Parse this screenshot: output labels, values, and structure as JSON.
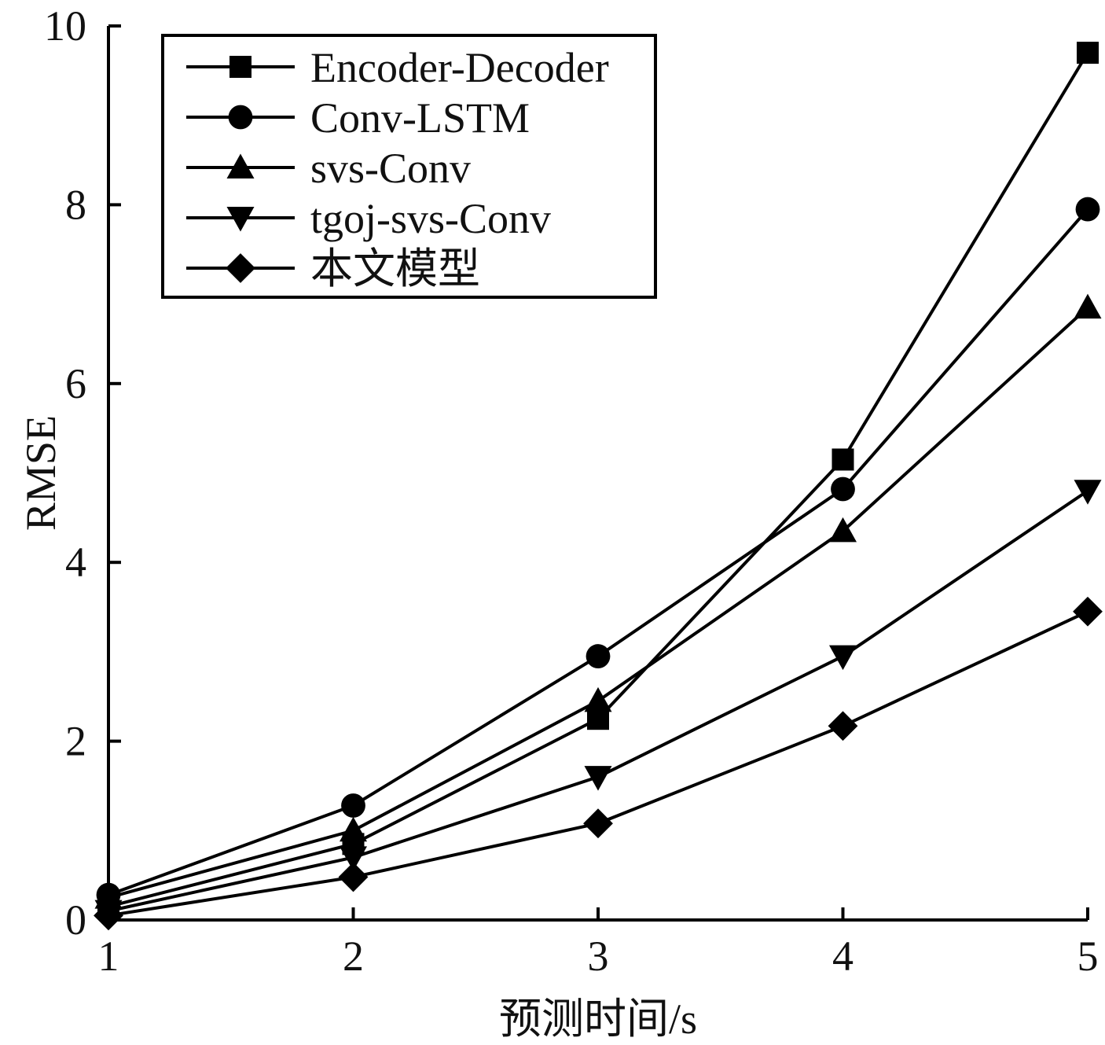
{
  "chart_data": {
    "type": "line",
    "title": "",
    "xlabel": "预测时间/s",
    "ylabel": "RMSE",
    "x": [
      1,
      2,
      3,
      4,
      5
    ],
    "xticks": [
      "1",
      "2",
      "3",
      "4",
      "5"
    ],
    "yticks": [
      "0",
      "2",
      "4",
      "6",
      "8",
      "10"
    ],
    "xlim": [
      1,
      5
    ],
    "ylim": [
      0,
      10
    ],
    "grid": false,
    "legend_position": "top-left",
    "series": [
      {
        "name": "Encoder-Decoder",
        "marker": "square",
        "values": [
          0.15,
          0.85,
          2.25,
          5.15,
          9.7
        ]
      },
      {
        "name": "Conv-LSTM",
        "marker": "circle",
        "values": [
          0.28,
          1.28,
          2.95,
          4.82,
          7.95
        ]
      },
      {
        "name": "svs-Conv",
        "marker": "triangle-up",
        "values": [
          0.25,
          1.0,
          2.45,
          4.35,
          6.85
        ]
      },
      {
        "name": "tgoj-svs-Conv",
        "marker": "triangle-down",
        "values": [
          0.1,
          0.7,
          1.6,
          2.95,
          4.8
        ]
      },
      {
        "name": "本文模型",
        "marker": "diamond",
        "values": [
          0.05,
          0.48,
          1.08,
          2.17,
          3.45
        ]
      }
    ],
    "colors": {
      "line": "#000000",
      "marker": "#000000"
    }
  }
}
